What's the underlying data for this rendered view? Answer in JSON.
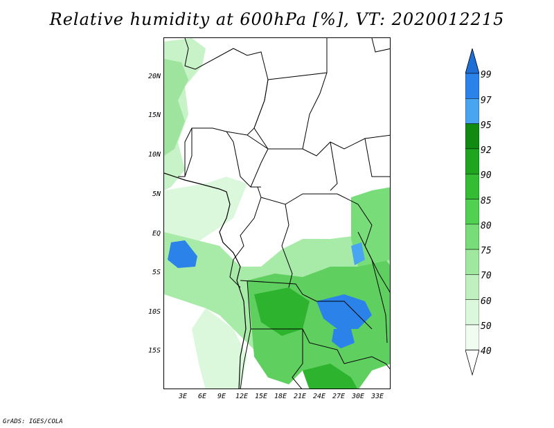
{
  "title": "Relative humidity at 600hPa [%], VT: 2020012215",
  "map": {
    "lat_labels": [
      "20N",
      "15N",
      "10N",
      "5N",
      "EQ",
      "5S",
      "10S",
      "15S"
    ],
    "lon_labels": [
      "3E",
      "6E",
      "9E",
      "12E",
      "15E",
      "18E",
      "21E",
      "24E",
      "27E",
      "30E",
      "33E"
    ]
  },
  "legend": {
    "values": [
      "99",
      "97",
      "95",
      "92",
      "90",
      "85",
      "80",
      "75",
      "70",
      "60",
      "50",
      "40"
    ],
    "colors": [
      "#1e6ed6",
      "#2b82e8",
      "#4aa5f0",
      "#108a10",
      "#1fa51f",
      "#34bc34",
      "#52d052",
      "#78dc78",
      "#a0e8a0",
      "#c0f0c0",
      "#dcf8dc",
      "#effcef"
    ]
  },
  "footer": "GrADS: IGES/COLA"
}
